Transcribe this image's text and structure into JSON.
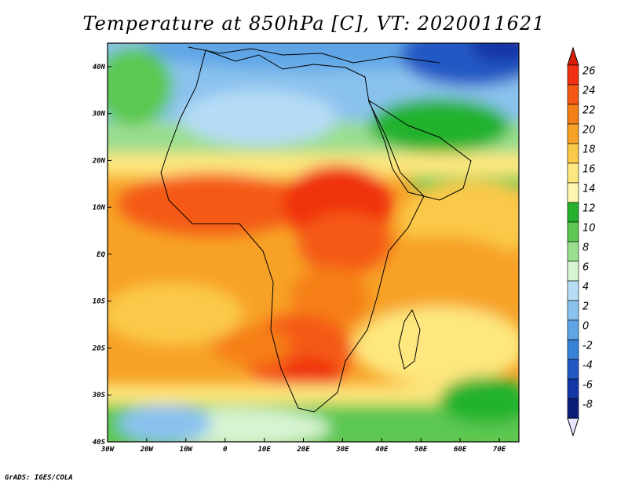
{
  "title": "Temperature at 850hPa [C], VT: 2020011621",
  "credit": "GrADS: IGES/COLA",
  "map": {
    "lon_range": [
      -30,
      75
    ],
    "lat_range": [
      -40,
      45
    ],
    "x_ticks": [
      {
        "value": -30,
        "label": "30W"
      },
      {
        "value": -20,
        "label": "20W"
      },
      {
        "value": -10,
        "label": "10W"
      },
      {
        "value": 0,
        "label": "0"
      },
      {
        "value": 10,
        "label": "10E"
      },
      {
        "value": 20,
        "label": "20E"
      },
      {
        "value": 30,
        "label": "30E"
      },
      {
        "value": 40,
        "label": "40E"
      },
      {
        "value": 50,
        "label": "50E"
      },
      {
        "value": 60,
        "label": "60E"
      },
      {
        "value": 70,
        "label": "70E"
      }
    ],
    "y_ticks": [
      {
        "value": 40,
        "label": "40N"
      },
      {
        "value": 30,
        "label": "30N"
      },
      {
        "value": 20,
        "label": "20N"
      },
      {
        "value": 10,
        "label": "10N"
      },
      {
        "value": 0,
        "label": "EQ"
      },
      {
        "value": -10,
        "label": "10S"
      },
      {
        "value": -20,
        "label": "20S"
      },
      {
        "value": -30,
        "label": "30S"
      },
      {
        "value": -40,
        "label": "40S"
      }
    ]
  },
  "colorbar": {
    "levels": [
      "26",
      "24",
      "22",
      "20",
      "18",
      "16",
      "14",
      "12",
      "10",
      "8",
      "6",
      "4",
      "2",
      "0",
      "-2",
      "-4",
      "-6",
      "-8"
    ],
    "colors": [
      "#f03010",
      "#f45a14",
      "#f57f17",
      "#f7a227",
      "#fbc94a",
      "#fde77e",
      "#fff7b0",
      "#24b22e",
      "#5cc851",
      "#9ade8f",
      "#d8f4d2",
      "#b6dcf6",
      "#8ac2ee",
      "#5fa5e6",
      "#3782d9",
      "#2358c4",
      "#1336a6",
      "#0b1f7a"
    ],
    "top_color": "#d91e0a",
    "bottom_color": "#e6e6ff"
  }
}
